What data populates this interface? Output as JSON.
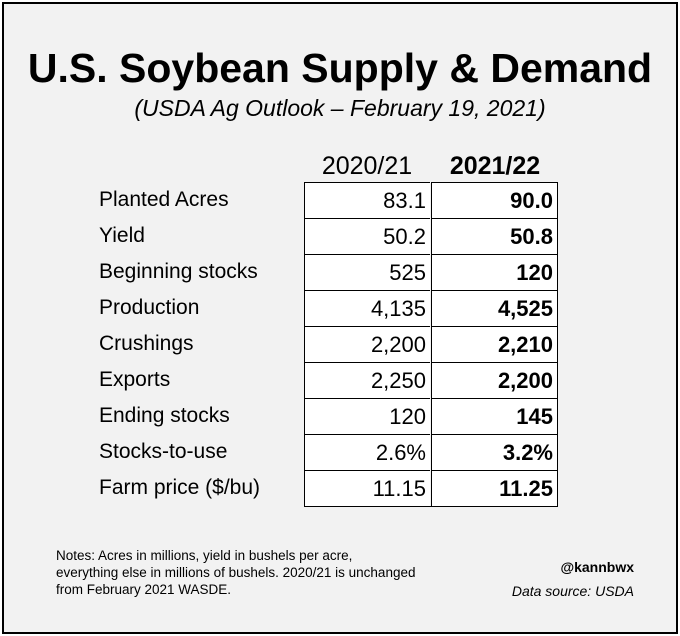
{
  "title": "U.S. Soybean Supply & Demand",
  "subtitle": "(USDA Ag Outlook – February 19, 2021)",
  "chart_data": {
    "type": "table",
    "columns": [
      "2020/21",
      "2021/22"
    ],
    "rows": [
      {
        "label": "Planted Acres",
        "values": [
          "83.1",
          "90.0"
        ]
      },
      {
        "label": "Yield",
        "values": [
          "50.2",
          "50.8"
        ]
      },
      {
        "label": "Beginning stocks",
        "values": [
          "525",
          "120"
        ]
      },
      {
        "label": "Production",
        "values": [
          "4,135",
          "4,525"
        ]
      },
      {
        "label": "Crushings",
        "values": [
          "2,200",
          "2,210"
        ]
      },
      {
        "label": "Exports",
        "values": [
          "2,250",
          "2,200"
        ]
      },
      {
        "label": "Ending stocks",
        "values": [
          "120",
          "145"
        ]
      },
      {
        "label": "Stocks-to-use",
        "values": [
          "2.6%",
          "3.2%"
        ]
      },
      {
        "label": "Farm price ($/bu)",
        "values": [
          "11.15",
          "11.25"
        ]
      }
    ]
  },
  "notes": "Notes: Acres in millions, yield in bushels per acre, everything else in millions of bushels. 2020/21 is unchanged from February 2021 WASDE.",
  "handle": "@kannbwx",
  "source": "Data source: USDA"
}
